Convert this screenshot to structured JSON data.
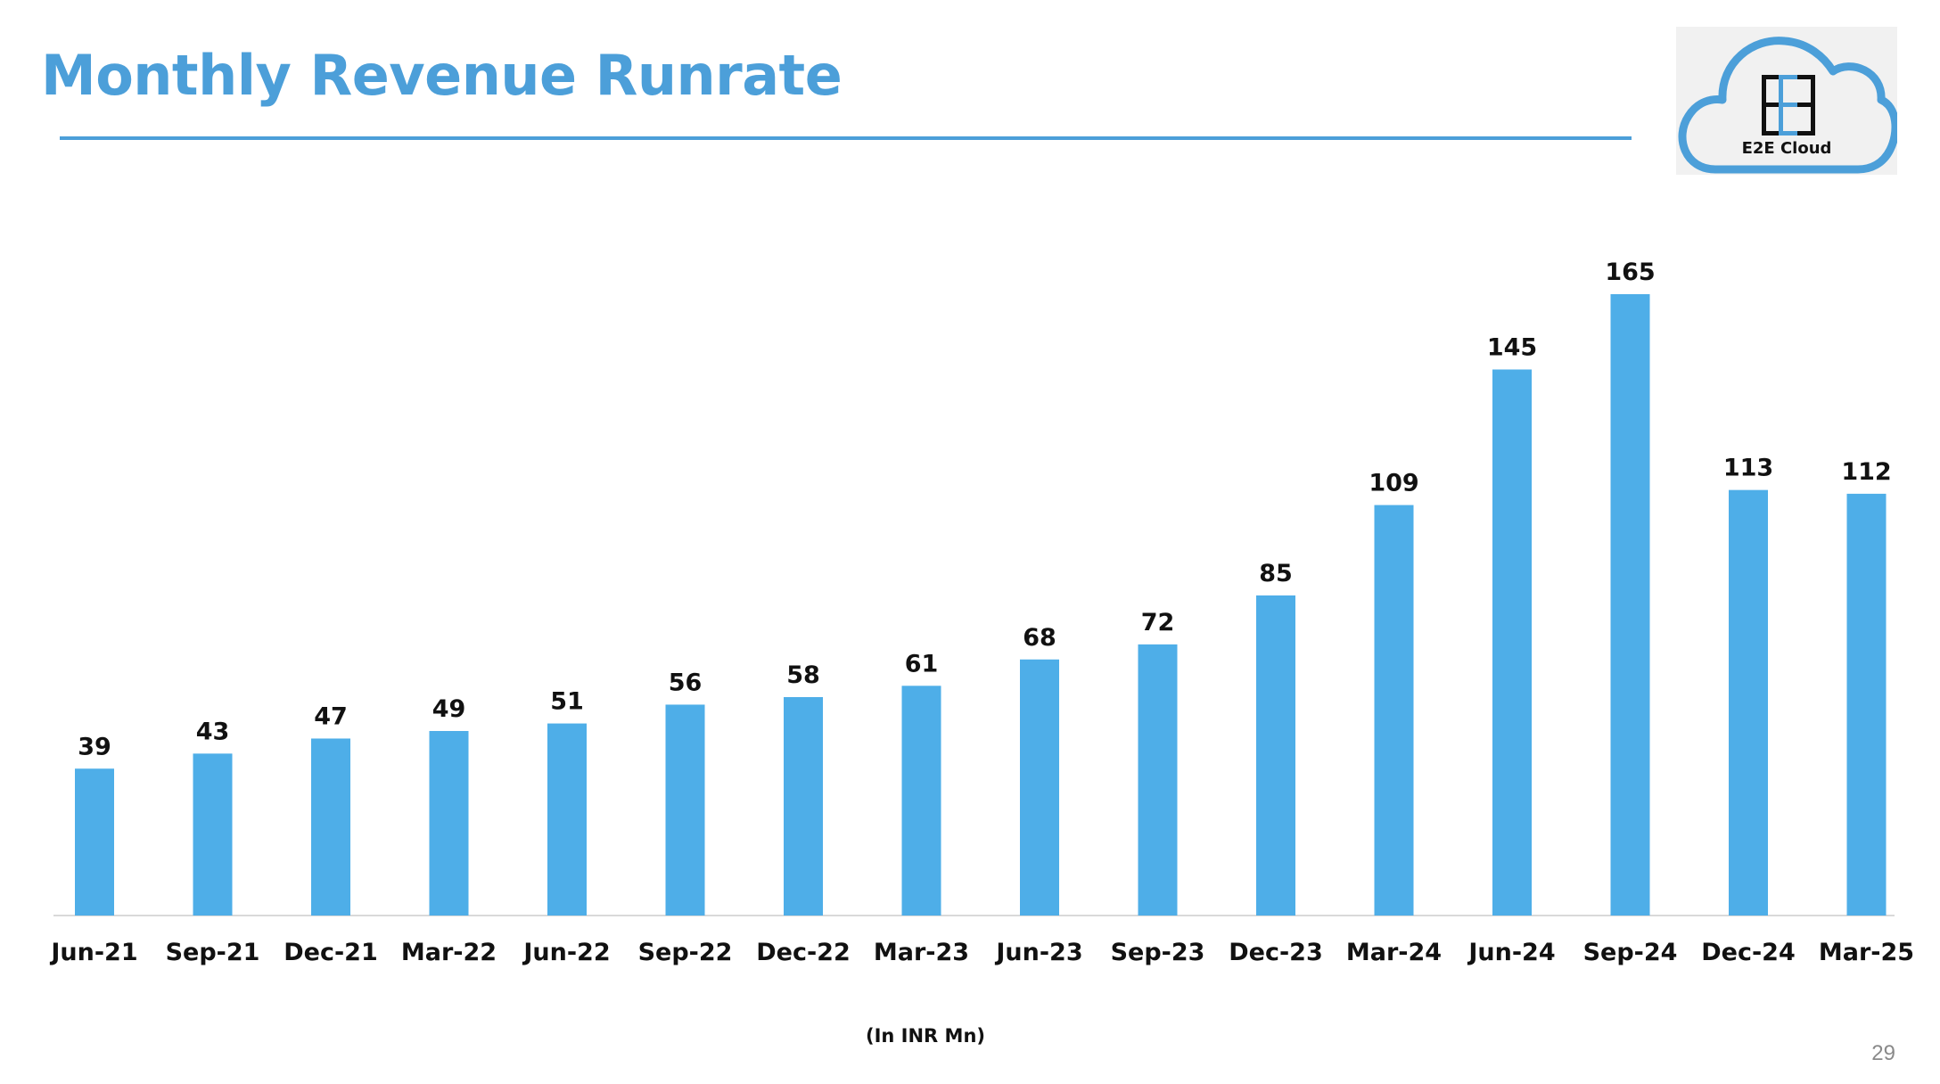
{
  "slide": {
    "title": "Monthly Revenue Runrate",
    "unit_note": "(In INR Mn)",
    "page_number": "29"
  },
  "logo": {
    "text": "E2E Cloud",
    "color": "#4c9fd9"
  },
  "colors": {
    "title": "#4c9fd9",
    "bar": "#4eaee8"
  },
  "chart_data": {
    "type": "bar",
    "title": "",
    "xlabel": "",
    "ylabel": "",
    "ylim": [
      0,
      165
    ],
    "grid": false,
    "legend": "none",
    "data_labels": true,
    "categories": [
      "Jun-21",
      "Sep-21",
      "Dec-21",
      "Mar-22",
      "Jun-22",
      "Sep-22",
      "Dec-22",
      "Mar-23",
      "Jun-23",
      "Sep-23",
      "Dec-23",
      "Mar-24",
      "Jun-24",
      "Sep-24",
      "Dec-24",
      "Mar-25"
    ],
    "values": [
      39,
      43,
      47,
      49,
      51,
      56,
      58,
      61,
      68,
      72,
      85,
      109,
      145,
      165,
      113,
      112
    ]
  }
}
